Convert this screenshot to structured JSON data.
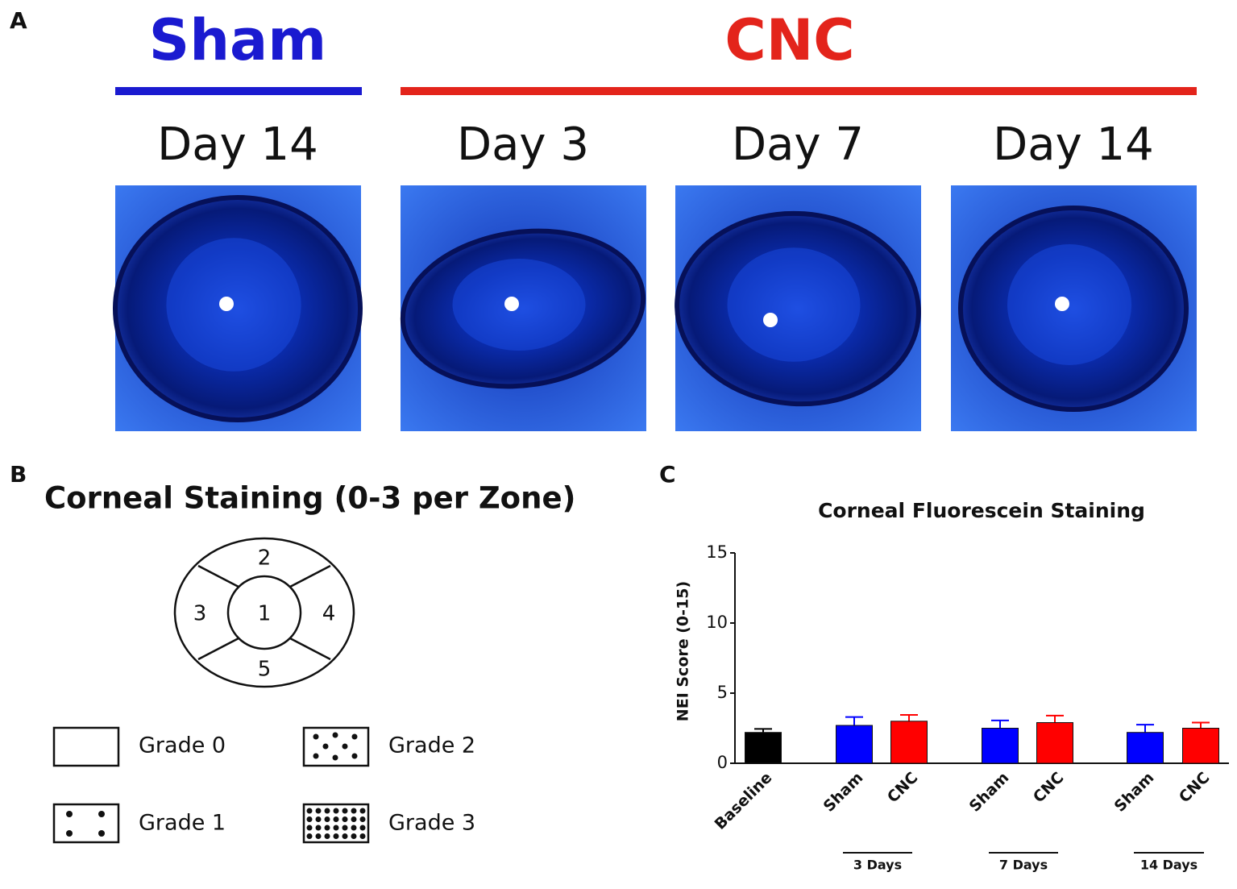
{
  "panel_a": {
    "label": "A",
    "groups": [
      {
        "name": "Sham",
        "color": "#1a1ad0"
      },
      {
        "name": "CNC",
        "color": "#e3241b"
      }
    ],
    "images": [
      {
        "caption": "Day 14"
      },
      {
        "caption": "Day 3"
      },
      {
        "caption": "Day 7"
      },
      {
        "caption": "Day 14"
      }
    ]
  },
  "panel_b": {
    "label": "B",
    "title": "Corneal Staining (0-3 per Zone)",
    "zones": [
      "1",
      "2",
      "3",
      "4",
      "5"
    ],
    "grades": [
      "Grade 0",
      "Grade 1",
      "Grade 2",
      "Grade 3"
    ]
  },
  "chart_data": {
    "type": "bar",
    "label": "C",
    "title": "Corneal  Fluorescein Staining",
    "ylabel": "NEI Score (0-15)",
    "categories": [
      "Baseline",
      "Sham",
      "CNC",
      "Sham",
      "CNC",
      "Sham",
      "CNC"
    ],
    "values": [
      2.2,
      2.7,
      3.0,
      2.5,
      2.9,
      2.2,
      2.5
    ],
    "errors": [
      0.25,
      0.6,
      0.45,
      0.55,
      0.5,
      0.55,
      0.4
    ],
    "colors": [
      "#000000",
      "#0000ff",
      "#ff0000",
      "#0000ff",
      "#ff0000",
      "#0000ff",
      "#ff0000"
    ],
    "group_labels": [
      "3 Days",
      "7 Days",
      "14 Days"
    ],
    "ylim": [
      0,
      15
    ],
    "yticks": [
      0,
      5,
      10,
      15
    ]
  }
}
